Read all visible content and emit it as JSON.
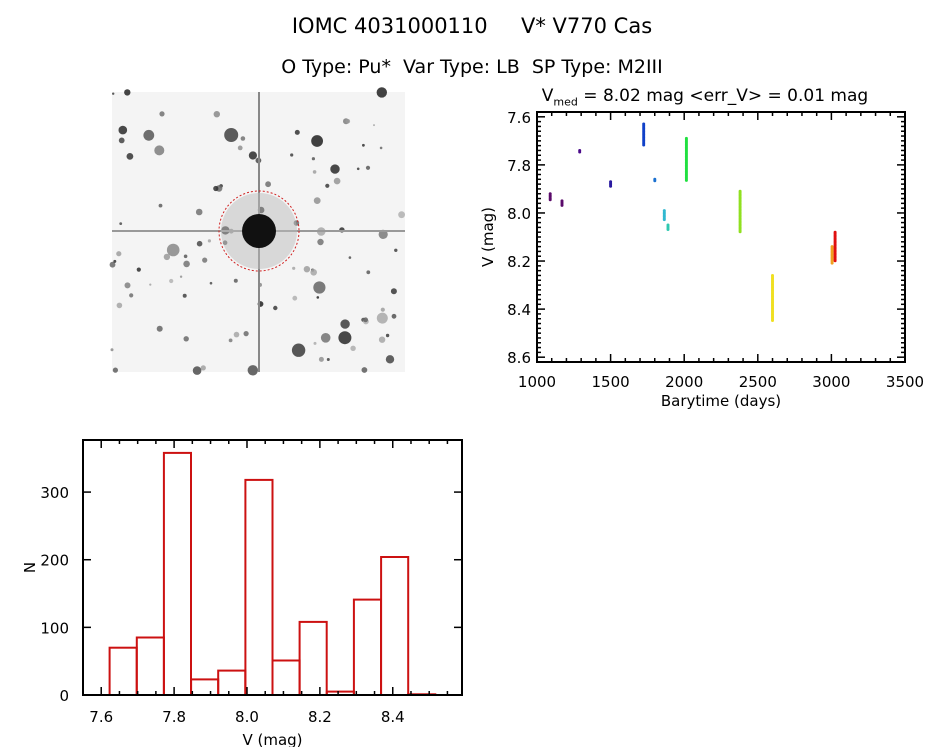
{
  "header": {
    "title": "IOMC 4031000110     V* V770 Cas",
    "info": "O Type: Pu*  Var Type: LB  SP Type: M2III",
    "stats_prefix": "V",
    "stats_sub": "med",
    "stats_rest": " = 8.02 mag <err_V> = 0.01 mag"
  },
  "colors": {
    "hist": "#cc1111",
    "axis": "#000000"
  },
  "chart_data": [
    {
      "type": "scatter",
      "title": "V_med = 8.02 mag <err_V> = 0.01 mag",
      "xlabel": "Barytime (days)",
      "ylabel": "V (mag)",
      "xlim": [
        1000,
        3500
      ],
      "ylim": [
        7.58,
        8.62
      ],
      "y_inverted": true,
      "xticks": [
        1000,
        1500,
        2000,
        2500,
        3000,
        3500
      ],
      "xtick_labels": [
        "1000",
        "1500",
        "2000",
        "2500",
        "3000",
        "3500"
      ],
      "yticks": [
        7.6,
        7.8,
        8.0,
        8.2,
        8.4,
        8.6
      ],
      "ytick_labels": [
        "7.6",
        "7.8",
        "8.0",
        "8.2",
        "8.4",
        "8.6"
      ],
      "series": [
        {
          "x": 1090,
          "ymin": 7.92,
          "ymax": 7.95,
          "color": "#5a0a6a"
        },
        {
          "x": 1170,
          "ymin": 7.95,
          "ymax": 7.97,
          "color": "#5a0a6a"
        },
        {
          "x": 1290,
          "ymin": 7.74,
          "ymax": 7.75,
          "color": "#4a0a8a"
        },
        {
          "x": 1500,
          "ymin": 7.87,
          "ymax": 7.89,
          "color": "#2a1aa0"
        },
        {
          "x": 1725,
          "ymin": 7.63,
          "ymax": 7.72,
          "color": "#1040c8"
        },
        {
          "x": 1800,
          "ymin": 7.86,
          "ymax": 7.87,
          "color": "#1a70d0"
        },
        {
          "x": 1865,
          "ymin": 7.99,
          "ymax": 8.03,
          "color": "#30b8d0"
        },
        {
          "x": 1890,
          "ymin": 8.05,
          "ymax": 8.07,
          "color": "#30c8b0"
        },
        {
          "x": 2015,
          "ymin": 7.69,
          "ymax": 7.87,
          "color": "#20e040"
        },
        {
          "x": 2380,
          "ymin": 7.91,
          "ymax": 8.08,
          "color": "#90e020"
        },
        {
          "x": 2600,
          "ymin": 8.26,
          "ymax": 8.45,
          "color": "#f0e020"
        },
        {
          "x": 3005,
          "ymin": 8.14,
          "ymax": 8.21,
          "color": "#f0a020"
        },
        {
          "x": 3025,
          "ymin": 8.08,
          "ymax": 8.2,
          "color": "#e01010"
        }
      ]
    },
    {
      "type": "bar",
      "style": "histogram-outline",
      "xlabel": "V (mag)",
      "ylabel": "N",
      "xlim": [
        7.55,
        8.59
      ],
      "ylim": [
        0,
        377
      ],
      "xticks": [
        7.6,
        7.8,
        8.0,
        8.2,
        8.4
      ],
      "xtick_labels": [
        "7.6",
        "7.8",
        "8.0",
        "8.2",
        "8.4"
      ],
      "yticks": [
        0,
        100,
        200,
        300
      ],
      "ytick_labels": [
        "0",
        "100",
        "200",
        "300"
      ],
      "bin_start": 7.623,
      "bin_width": 0.0745,
      "values": [
        70,
        85,
        358,
        23,
        36,
        318,
        51,
        108,
        5,
        141,
        204,
        1
      ]
    }
  ]
}
